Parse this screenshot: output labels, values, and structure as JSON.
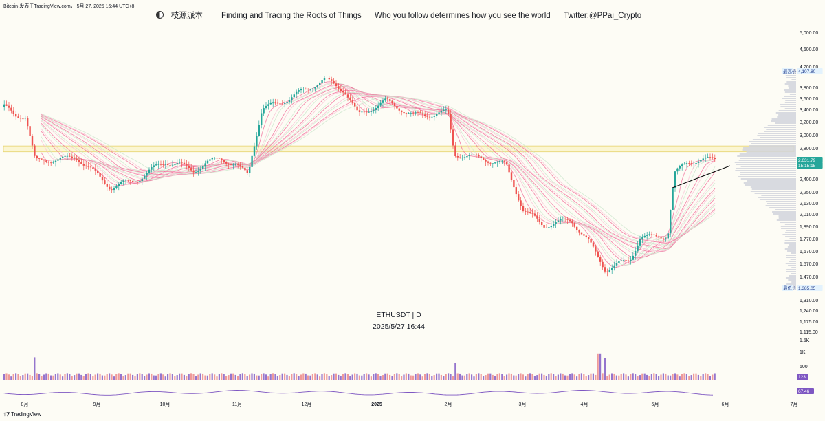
{
  "header": {
    "caption": "Bitcoin-发表于TradingView.com， 5月 27, 2025 16:44 UTC+8"
  },
  "banner": {
    "brand": "枝源派本",
    "tagline1": "Finding and Tracing the Roots of Things",
    "tagline2": "Who you follow determines how you see the world",
    "twitter": "Twitter:@PPai_Crypto"
  },
  "watermark": {
    "symbol": "ETHUSDT | D",
    "datetime": "2025/5/27 16:44"
  },
  "footer": {
    "logo_text": "TradingView"
  },
  "colors": {
    "up": "#26a69a",
    "down": "#ef5350",
    "bg": "#fdfcf5",
    "resist": "#e6d36c",
    "rsi": "#7e57c2"
  },
  "chart_data": {
    "type": "candlestick",
    "symbol": "ETHUSDT",
    "interval": "D",
    "y_ticks": [
      "5,000.00",
      "4,600.00",
      "4,200.00",
      "3,800.00",
      "3,600.00",
      "3,400.00",
      "3,200.00",
      "3,000.00",
      "2,800.00",
      "2,600.00",
      "2,400.00",
      "2,250.00",
      "2,130.00",
      "2,010.00",
      "1,890.00",
      "1,770.00",
      "1,670.00",
      "1,570.00",
      "1,470.00",
      "1,310.00",
      "1,240.00",
      "1,175.00",
      "1,115.00"
    ],
    "x_ticks": [
      "8月",
      "9月",
      "10月",
      "11月",
      "12月",
      "2025",
      "2月",
      "3月",
      "4月",
      "5月",
      "6月",
      "7月"
    ],
    "price_labels": {
      "high_tag": "最高价",
      "high": "4,107.80",
      "low_tag": "最低价",
      "low": "1,385.05",
      "last": "2,631.79",
      "countdown": "15:15:15"
    },
    "volume_ticks": [
      "1.5K",
      "1K",
      "500"
    ],
    "volume_last": "123",
    "rsi_last": "67.46",
    "resistance_zone": [
      2740,
      2830
    ],
    "monthly_closes": [
      3300,
      2600,
      2470,
      2560,
      3700,
      3350,
      3300,
      2200,
      1820,
      1800,
      2600,
      2630
    ],
    "volume_spikes": [
      1200,
      900,
      1400,
      1150
    ]
  }
}
